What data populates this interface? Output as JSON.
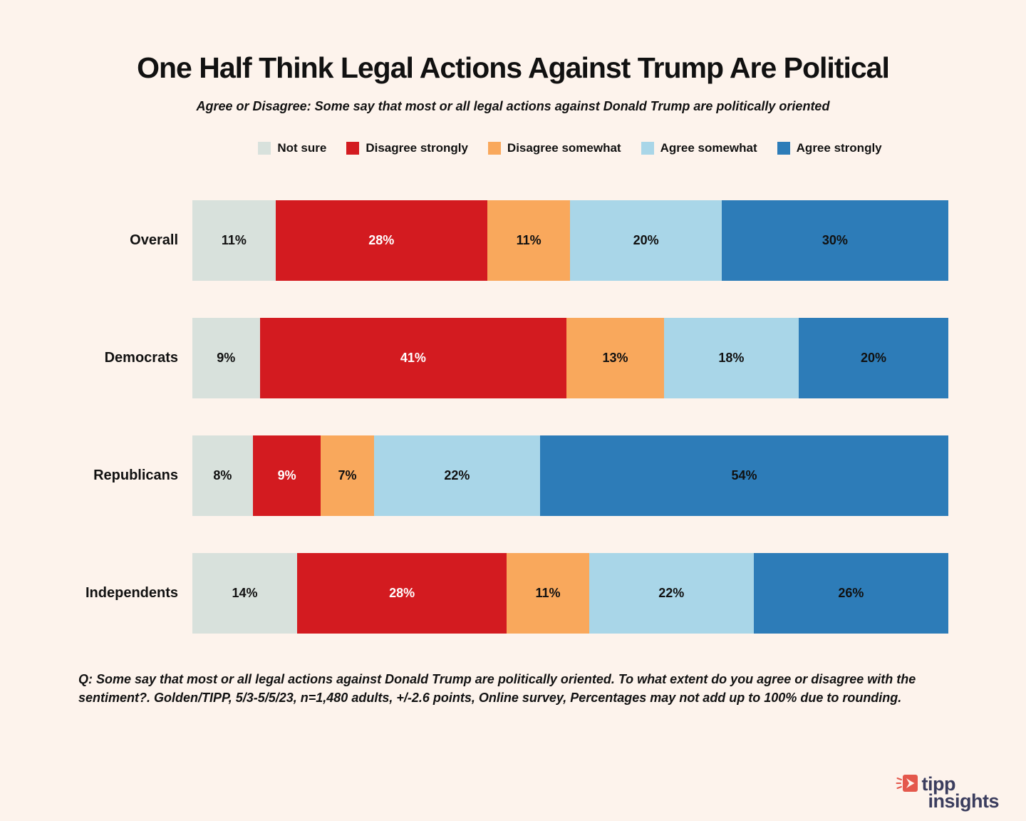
{
  "title": "One Half Think Legal Actions Against Trump Are Political",
  "subtitle": "Agree or Disagree: Some say that most or all legal actions against Donald Trump are politically oriented",
  "legend": [
    {
      "label": "Not sure",
      "color": "#D8E1DC"
    },
    {
      "label": "Disagree strongly",
      "color": "#D31B20"
    },
    {
      "label": "Disagree somewhat",
      "color": "#F9A85C"
    },
    {
      "label": "Agree somewhat",
      "color": "#A9D6E8"
    },
    {
      "label": "Agree strongly",
      "color": "#2D7CB8"
    }
  ],
  "chart_data": {
    "type": "bar",
    "stacked": true,
    "orientation": "horizontal",
    "title": "One Half Think Legal Actions Against Trump Are Political",
    "categories": [
      "Overall",
      "Democrats",
      "Republicans",
      "Independents"
    ],
    "series": [
      {
        "name": "Not sure",
        "color": "#D8E1DC",
        "text_color": "#111111",
        "values": [
          11,
          9,
          8,
          14
        ]
      },
      {
        "name": "Disagree strongly",
        "color": "#D31B20",
        "text_color": "#FFFFFF",
        "values": [
          28,
          41,
          9,
          28
        ]
      },
      {
        "name": "Disagree somewhat",
        "color": "#F9A85C",
        "text_color": "#111111",
        "values": [
          11,
          13,
          7,
          11
        ]
      },
      {
        "name": "Agree somewhat",
        "color": "#A9D6E8",
        "text_color": "#111111",
        "values": [
          20,
          18,
          22,
          22
        ]
      },
      {
        "name": "Agree strongly",
        "color": "#2D7CB8",
        "text_color": "#111111",
        "values": [
          30,
          20,
          54,
          26
        ]
      }
    ],
    "value_suffix": "%",
    "xlim": [
      0,
      100
    ],
    "grid": false,
    "legend_position": "top"
  },
  "footnote": "Q: Some say that most or all legal actions against Donald Trump are politically oriented. To what extent do you agree or disagree with the sentiment?. Golden/TIPP, 5/3-5/5/23, n=1,480 adults, +/-2.6 points, Online survey, Percentages may not add up to 100% due to rounding.",
  "logo": {
    "line1": "tipp",
    "line2": "insights",
    "icon_color": "#E4584C",
    "text_color": "#3B3D5E"
  },
  "colors": {
    "background": "#FDF3EC",
    "text": "#111111"
  }
}
